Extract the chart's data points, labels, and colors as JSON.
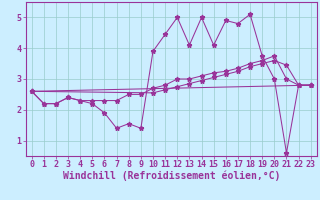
{
  "xlabel": "Windchill (Refroidissement éolien,°C)",
  "background_color": "#cceeff",
  "grid_color": "#99cccc",
  "line_color": "#993399",
  "xlim": [
    -0.5,
    23.5
  ],
  "ylim": [
    0.5,
    5.5
  ],
  "xticks": [
    0,
    1,
    2,
    3,
    4,
    5,
    6,
    7,
    8,
    9,
    10,
    11,
    12,
    13,
    14,
    15,
    16,
    17,
    18,
    19,
    20,
    21,
    22,
    23
  ],
  "yticks": [
    1,
    2,
    3,
    4,
    5
  ],
  "series1_x": [
    0,
    1,
    2,
    3,
    4,
    5,
    6,
    7,
    8,
    9,
    10,
    11,
    12,
    13,
    14,
    15,
    16,
    17,
    18,
    19,
    20,
    21,
    22,
    23
  ],
  "series1_y": [
    2.6,
    2.2,
    2.2,
    2.4,
    2.3,
    2.2,
    1.9,
    1.4,
    1.55,
    1.4,
    3.9,
    4.45,
    5.0,
    4.1,
    5.0,
    4.1,
    4.9,
    4.8,
    5.1,
    3.75,
    3.0,
    0.6,
    2.8,
    2.8
  ],
  "series2_x": [
    0,
    1,
    2,
    3,
    4,
    5,
    6,
    7,
    8,
    9,
    10,
    11,
    12,
    13,
    14,
    15,
    16,
    17,
    18,
    19,
    20,
    21,
    22,
    23
  ],
  "series2_y": [
    2.6,
    2.2,
    2.2,
    2.4,
    2.3,
    2.3,
    2.3,
    2.3,
    2.5,
    2.5,
    2.7,
    2.8,
    3.0,
    3.0,
    3.1,
    3.2,
    3.25,
    3.35,
    3.5,
    3.6,
    3.75,
    3.0,
    2.8,
    2.8
  ],
  "series3_x": [
    0,
    10,
    11,
    12,
    13,
    14,
    15,
    16,
    17,
    18,
    19,
    20,
    21,
    22,
    23
  ],
  "series3_y": [
    2.6,
    2.55,
    2.65,
    2.75,
    2.85,
    2.95,
    3.05,
    3.15,
    3.25,
    3.4,
    3.5,
    3.6,
    3.45,
    2.8,
    2.8
  ],
  "series4_x": [
    0,
    23
  ],
  "series4_y": [
    2.6,
    2.8
  ],
  "tick_labelsize": 6,
  "xlabel_fontsize": 7
}
